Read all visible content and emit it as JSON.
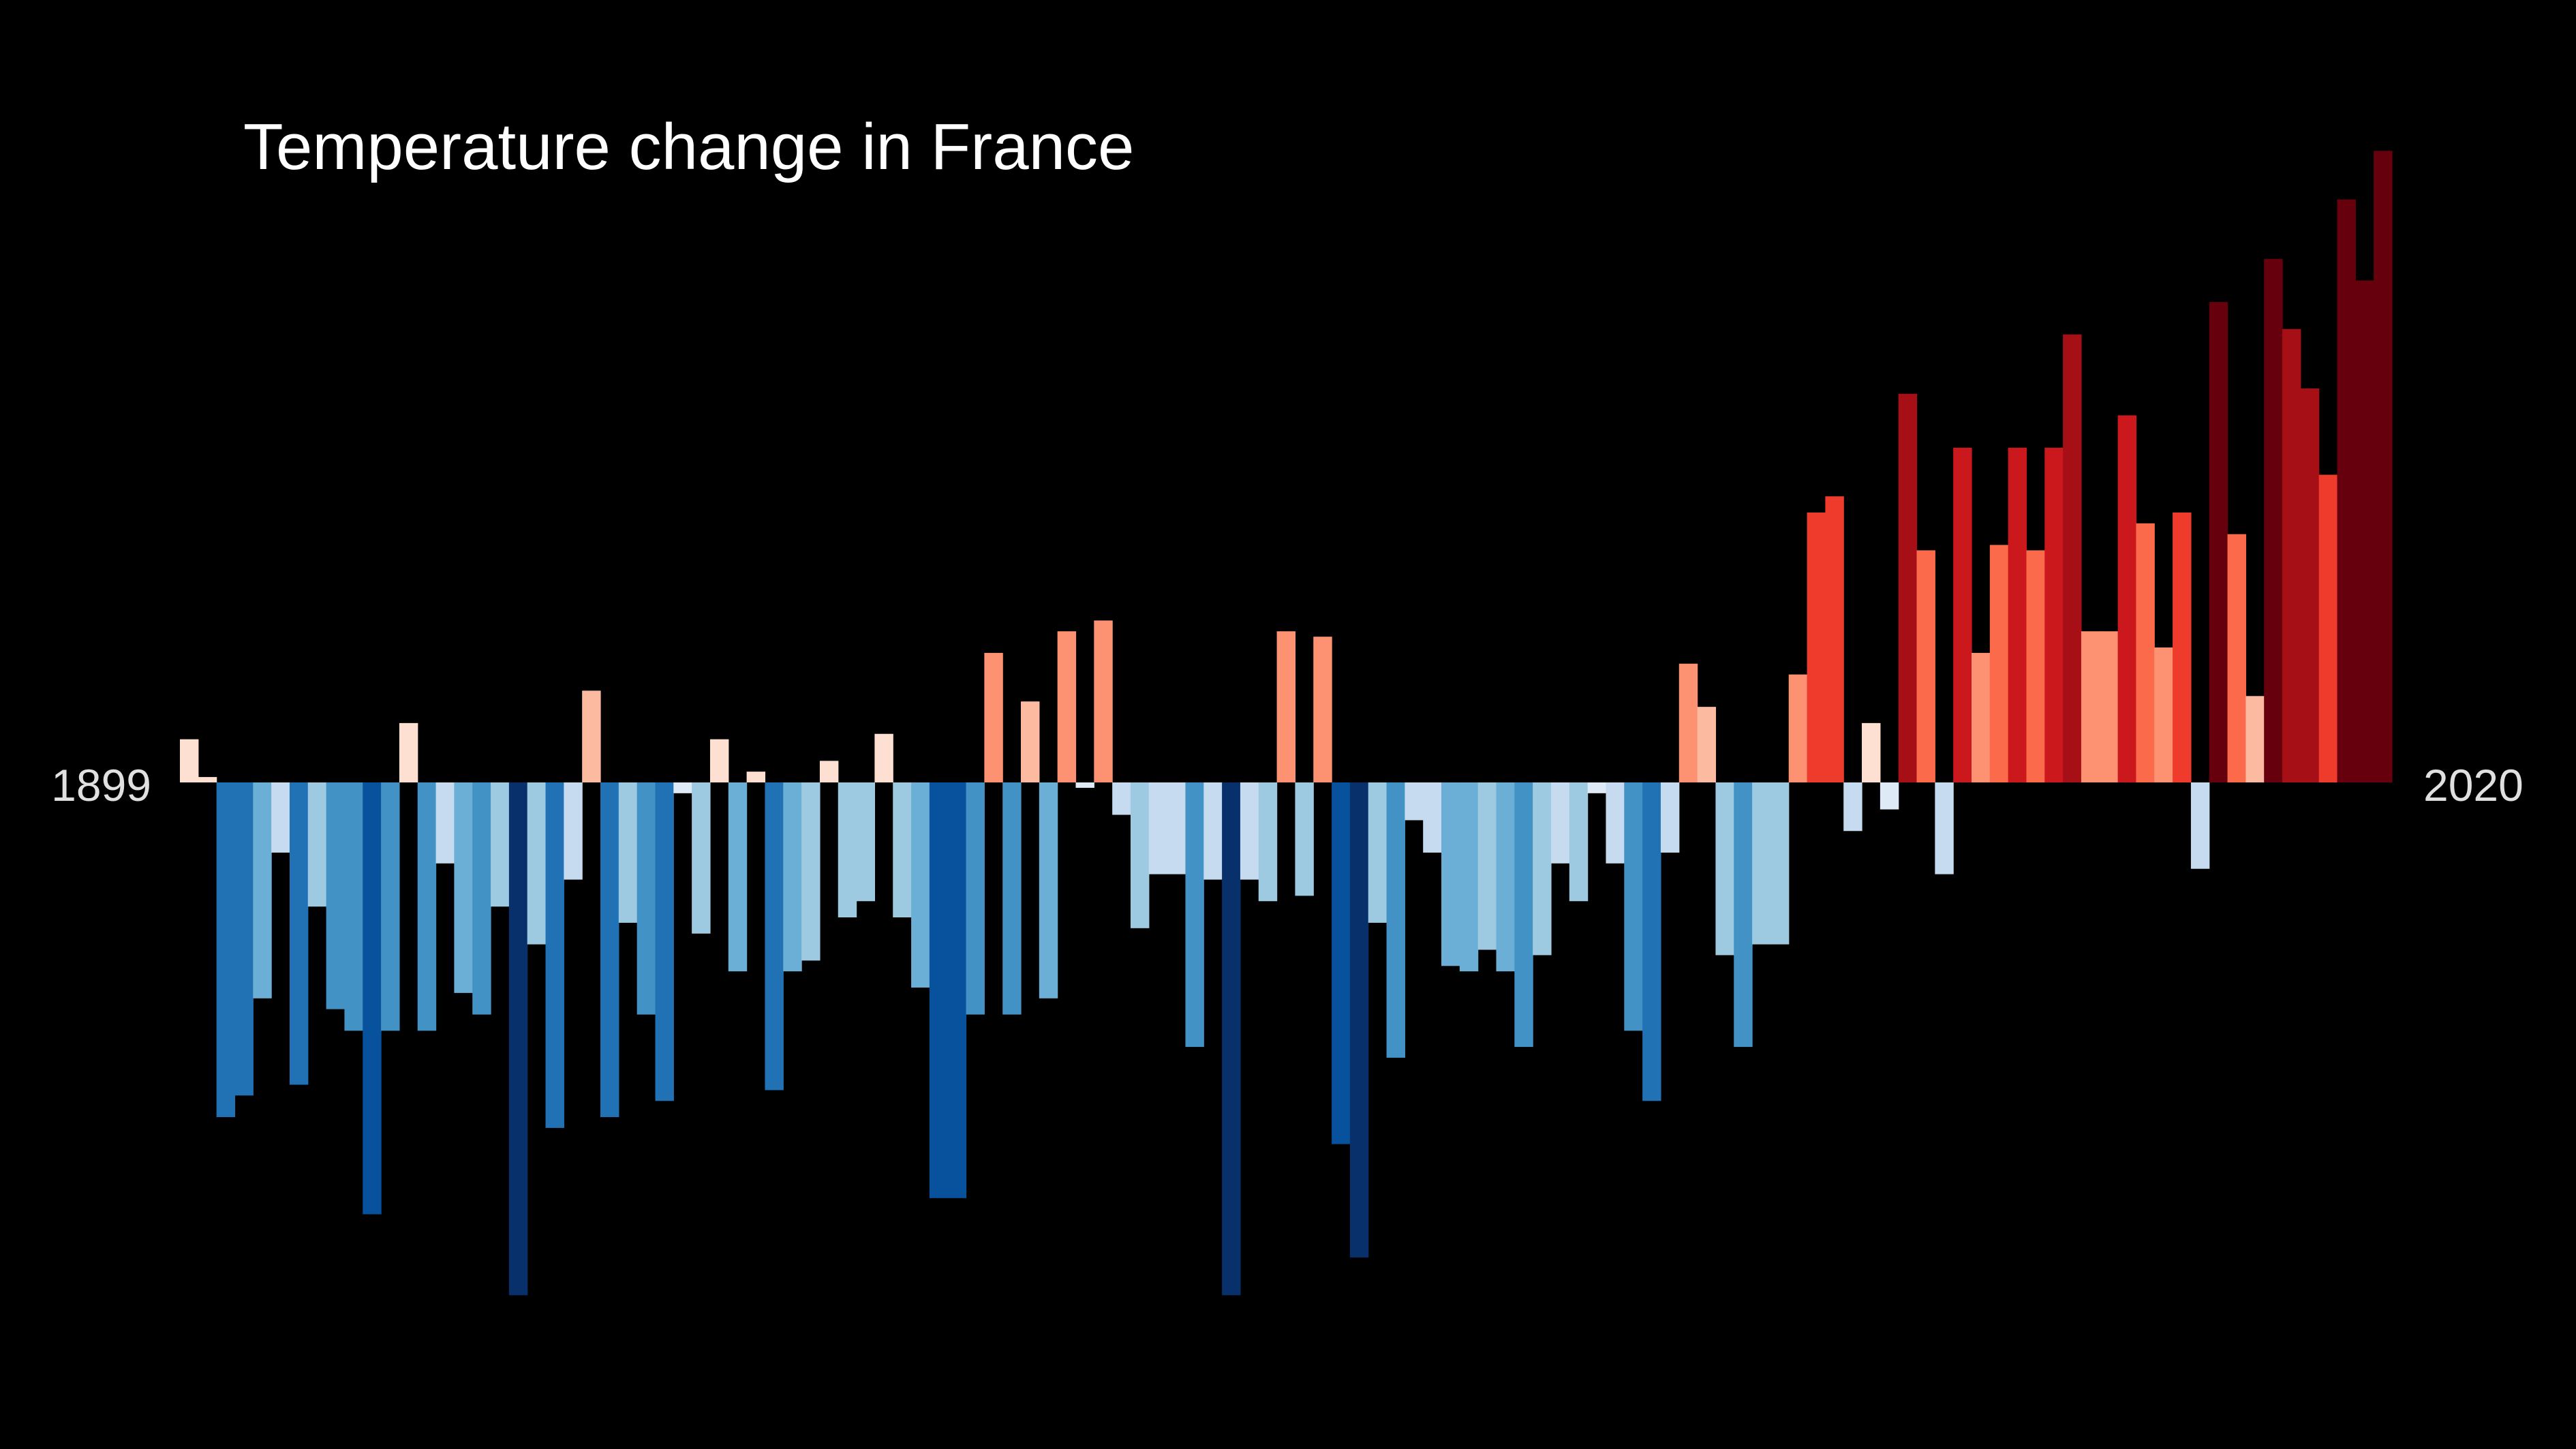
{
  "chart_data": {
    "type": "bar",
    "title": "Temperature change in France",
    "xlabel": "",
    "ylabel": "",
    "start_year": "1899",
    "end_year": "2020",
    "x_labels": [
      "1899",
      "2020"
    ],
    "ylim": [
      -0.95,
      1.2
    ],
    "grid": false,
    "legend": "none",
    "background": "#000000",
    "text_color": "#ffffff",
    "values": [
      0.08,
      0.01,
      -0.62,
      -0.58,
      -0.4,
      -0.13,
      -0.56,
      -0.23,
      -0.42,
      -0.46,
      -0.8,
      -0.46,
      0.11,
      -0.46,
      -0.15,
      -0.39,
      -0.43,
      -0.23,
      -0.95,
      -0.3,
      -0.64,
      -0.18,
      0.17,
      -0.62,
      -0.26,
      -0.43,
      -0.59,
      -0.02,
      -0.28,
      0.08,
      -0.35,
      0.02,
      -0.57,
      -0.35,
      -0.33,
      0.04,
      -0.25,
      -0.22,
      0.09,
      -0.25,
      -0.38,
      -0.77,
      -0.77,
      -0.43,
      0.24,
      -0.43,
      0.15,
      -0.4,
      0.28,
      -0.01,
      0.3,
      -0.06,
      -0.27,
      -0.17,
      -0.17,
      -0.49,
      -0.18,
      -0.95,
      -0.18,
      -0.22,
      0.28,
      -0.21,
      0.27,
      -0.67,
      -0.88,
      -0.26,
      -0.51,
      -0.07,
      -0.13,
      -0.34,
      -0.35,
      -0.31,
      -0.35,
      -0.49,
      -0.32,
      -0.15,
      -0.22,
      -0.02,
      -0.15,
      -0.46,
      -0.59,
      -0.13,
      0.22,
      0.14,
      -0.32,
      -0.49,
      -0.3,
      -0.3,
      0.2,
      0.5,
      0.53,
      -0.09,
      0.11,
      -0.05,
      0.72,
      0.43,
      -0.17,
      0.62,
      0.24,
      0.44,
      0.62,
      0.43,
      0.62,
      0.83,
      0.28,
      0.28,
      0.68,
      0.48,
      0.25,
      0.5,
      -0.16,
      0.89,
      0.46,
      0.16,
      0.97,
      0.84,
      0.73,
      0.57,
      1.08,
      0.93,
      1.17
    ]
  }
}
